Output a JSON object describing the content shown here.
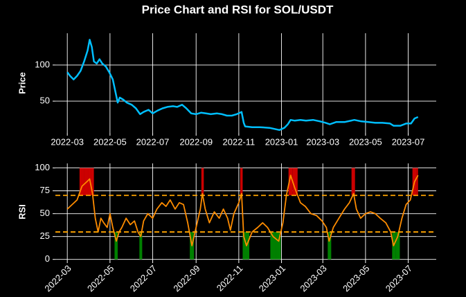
{
  "title": "Price Chart and RSI for SOL/USDT",
  "chart_data": [
    {
      "type": "line",
      "ylabel": "Price",
      "xlim": [
        "2022-02-12",
        "2023-08-10"
      ],
      "xticks": [
        "2022-03",
        "2022-05",
        "2022-07",
        "2022-09",
        "2022-11",
        "2023-01",
        "2023-03",
        "2023-05",
        "2023-07"
      ],
      "ylim": [
        6,
        144
      ],
      "yticks": [
        50,
        100
      ],
      "grid": true,
      "series": [
        {
          "color": "#00bfff",
          "x": [
            "2022-03-01",
            "2022-03-05",
            "2022-03-10",
            "2022-03-15",
            "2022-03-20",
            "2022-03-25",
            "2022-03-30",
            "2022-04-02",
            "2022-04-05",
            "2022-04-08",
            "2022-04-12",
            "2022-04-16",
            "2022-04-20",
            "2022-04-25",
            "2022-04-30",
            "2022-05-05",
            "2022-05-09",
            "2022-05-12",
            "2022-05-15",
            "2022-05-20",
            "2022-05-25",
            "2022-06-01",
            "2022-06-07",
            "2022-06-13",
            "2022-06-18",
            "2022-06-25",
            "2022-07-01",
            "2022-07-08",
            "2022-07-15",
            "2022-07-22",
            "2022-07-30",
            "2022-08-05",
            "2022-08-12",
            "2022-08-18",
            "2022-08-25",
            "2022-09-01",
            "2022-09-08",
            "2022-09-15",
            "2022-09-22",
            "2022-10-01",
            "2022-10-08",
            "2022-10-15",
            "2022-10-22",
            "2022-10-29",
            "2022-11-05",
            "2022-11-08",
            "2022-11-10",
            "2022-11-20",
            "2022-12-01",
            "2022-12-15",
            "2022-12-29",
            "2023-01-05",
            "2023-01-10",
            "2023-01-14",
            "2023-01-20",
            "2023-01-28",
            "2023-02-05",
            "2023-02-15",
            "2023-02-25",
            "2023-03-05",
            "2023-03-11",
            "2023-03-20",
            "2023-04-01",
            "2023-04-15",
            "2023-04-25",
            "2023-05-05",
            "2023-05-15",
            "2023-05-25",
            "2023-06-05",
            "2023-06-10",
            "2023-06-20",
            "2023-06-28",
            "2023-07-05",
            "2023-07-10",
            "2023-07-15"
          ],
          "values": [
            90,
            85,
            80,
            85,
            92,
            105,
            120,
            135,
            125,
            105,
            102,
            108,
            102,
            98,
            90,
            80,
            62,
            48,
            55,
            52,
            48,
            45,
            40,
            32,
            35,
            38,
            33,
            37,
            40,
            42,
            43,
            42,
            45,
            40,
            33,
            32,
            34,
            33,
            32,
            33,
            32,
            30,
            30,
            32,
            35,
            20,
            15,
            14,
            14,
            13,
            10,
            13,
            18,
            24,
            23,
            24,
            23,
            24,
            22,
            20,
            18,
            21,
            21,
            24,
            22,
            21,
            20,
            20,
            19,
            16,
            16,
            19,
            19,
            26,
            28
          ]
        }
      ]
    },
    {
      "type": "line",
      "ylabel": "RSI",
      "xlim": [
        "2022-02-12",
        "2023-08-10"
      ],
      "xticks": [
        "2022-03",
        "2022-05",
        "2022-07",
        "2022-09",
        "2022-11",
        "2023-01",
        "2023-03",
        "2023-05",
        "2023-07"
      ],
      "ylim": [
        -1,
        105
      ],
      "yticks": [
        0,
        25,
        50,
        75,
        100
      ],
      "grid": true,
      "overbought": 70,
      "oversold": 30,
      "threshold_color": "#ffa500",
      "overbought_color": "#cc0000",
      "oversold_color": "#008000",
      "series": [
        {
          "color": "#ff8c00",
          "x": [
            "2022-03-01",
            "2022-03-08",
            "2022-03-15",
            "2022-03-22",
            "2022-03-29",
            "2022-04-02",
            "2022-04-06",
            "2022-04-10",
            "2022-04-14",
            "2022-04-18",
            "2022-04-22",
            "2022-04-27",
            "2022-05-01",
            "2022-05-05",
            "2022-05-10",
            "2022-05-14",
            "2022-05-18",
            "2022-05-24",
            "2022-05-30",
            "2022-06-05",
            "2022-06-10",
            "2022-06-14",
            "2022-06-18",
            "2022-06-24",
            "2022-07-01",
            "2022-07-07",
            "2022-07-14",
            "2022-07-20",
            "2022-07-26",
            "2022-08-02",
            "2022-08-08",
            "2022-08-14",
            "2022-08-20",
            "2022-08-26",
            "2022-09-01",
            "2022-09-07",
            "2022-09-10",
            "2022-09-14",
            "2022-09-20",
            "2022-09-27",
            "2022-10-04",
            "2022-10-10",
            "2022-10-16",
            "2022-10-20",
            "2022-10-25",
            "2022-11-01",
            "2022-11-05",
            "2022-11-08",
            "2022-11-12",
            "2022-11-20",
            "2022-11-28",
            "2022-12-05",
            "2022-12-12",
            "2022-12-20",
            "2022-12-28",
            "2023-01-03",
            "2023-01-08",
            "2023-01-14",
            "2023-01-20",
            "2023-01-28",
            "2023-02-04",
            "2023-02-12",
            "2023-02-20",
            "2023-02-28",
            "2023-03-06",
            "2023-03-10",
            "2023-03-16",
            "2023-03-24",
            "2023-04-01",
            "2023-04-08",
            "2023-04-14",
            "2023-04-18",
            "2023-04-24",
            "2023-05-01",
            "2023-05-08",
            "2023-05-15",
            "2023-05-22",
            "2023-05-30",
            "2023-06-06",
            "2023-06-10",
            "2023-06-16",
            "2023-06-22",
            "2023-06-28",
            "2023-07-04",
            "2023-07-10",
            "2023-07-15"
          ],
          "values": [
            55,
            60,
            65,
            80,
            85,
            88,
            72,
            45,
            30,
            45,
            40,
            35,
            50,
            35,
            20,
            30,
            35,
            45,
            38,
            42,
            30,
            25,
            42,
            50,
            45,
            55,
            62,
            58,
            65,
            55,
            62,
            60,
            40,
            15,
            35,
            55,
            72,
            55,
            40,
            52,
            45,
            55,
            45,
            32,
            50,
            62,
            72,
            25,
            15,
            30,
            35,
            40,
            35,
            25,
            20,
            40,
            70,
            92,
            78,
            62,
            58,
            50,
            48,
            42,
            35,
            20,
            35,
            45,
            55,
            62,
            72,
            55,
            45,
            50,
            52,
            50,
            45,
            40,
            30,
            15,
            25,
            45,
            60,
            65,
            85,
            92
          ]
        }
      ]
    }
  ]
}
